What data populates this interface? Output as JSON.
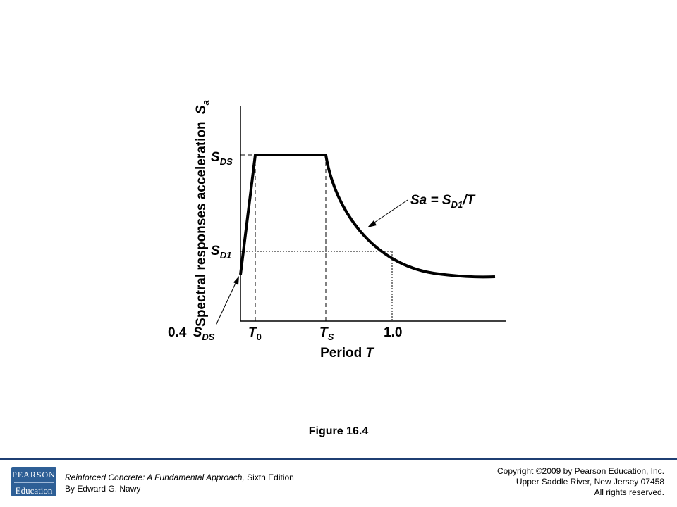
{
  "figure": {
    "caption": "Figure 16.4",
    "y_axis_label": "Spectral responses acceleration",
    "y_axis_symbol": "S",
    "y_axis_symbol_sub": "a",
    "x_axis_label": "Period",
    "x_axis_symbol": "T",
    "y_ticks": [
      {
        "base": "S",
        "sub": "DS",
        "prefix": ""
      },
      {
        "base": "S",
        "sub": "D1",
        "prefix": ""
      },
      {
        "base": "S",
        "sub": "DS",
        "prefix": "0.4 "
      }
    ],
    "x_ticks": [
      {
        "base": "T",
        "sub": "0"
      },
      {
        "base": "T",
        "sub": "S"
      },
      {
        "base": "1.0",
        "sub": ""
      }
    ],
    "curve_annotation": {
      "left": "Sa = S",
      "sub": "D1",
      "right": "/T"
    }
  },
  "footer": {
    "logo_top": "PEARSON",
    "logo_bottom": "Education",
    "book_title": "Reinforced Concrete: A Fundamental Approach,",
    "edition": " Sixth Edition",
    "author": "By Edward G. Nawy",
    "copyright": "Copyright ©2009 by Pearson Education, Inc.",
    "address": "Upper Saddle River, New Jersey 07458",
    "rights": "All rights reserved."
  },
  "colors": {
    "footer_rule": "#1f3f73",
    "logo_bg": "#2e5f96"
  }
}
